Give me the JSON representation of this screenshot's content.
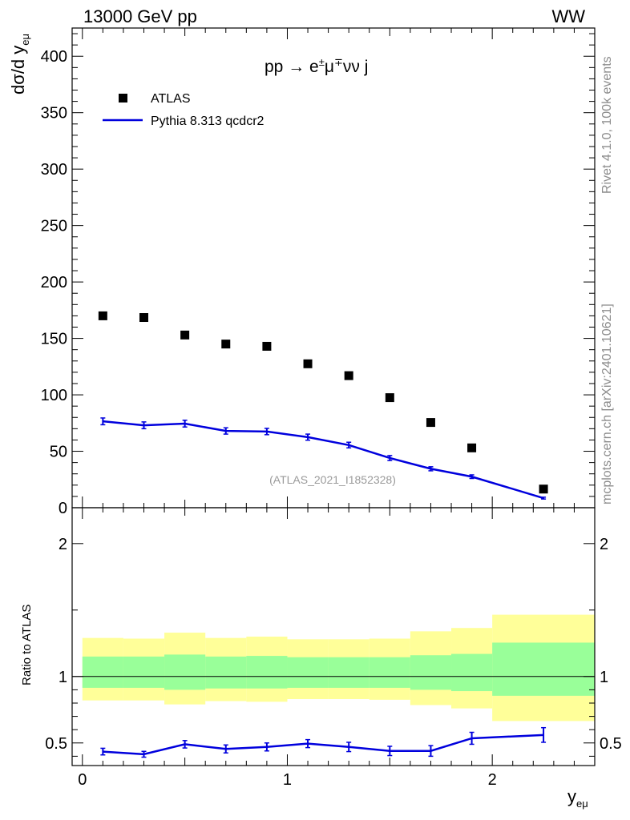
{
  "header": {
    "energy_label": "13000 GeV pp",
    "process_tag": "WW"
  },
  "side_labels": {
    "rivet": "Rivet 4.1.0,  100k events",
    "source": "mcplots.cern.ch [arXiv:2401.10621]"
  },
  "colors": {
    "data_marker": "#000000",
    "mc_line": "#0000dd",
    "band_inner": "#99ff99",
    "band_outer": "#ffff99"
  },
  "chart_data": [
    {
      "type": "scatter",
      "title": "pp → e±μ∓νν j",
      "process_parts": {
        "lhs": "pp",
        "arrow": "→",
        "e": "e",
        "e_sup": "±",
        "mu": "μ",
        "mu_sup": "∓",
        "rest": "νν j"
      },
      "ylabel": "dσ/d y",
      "ylabel_sub": "eμ",
      "xlabel": "y",
      "xlabel_sub": "eμ",
      "analysis_tag": "(ATLAS_2021_I1852328)",
      "xlim": [
        -0.05,
        2.5
      ],
      "ylim": [
        0,
        425
      ],
      "yticks": [
        0,
        50,
        100,
        150,
        200,
        250,
        300,
        350,
        400
      ],
      "ytick_labels": [
        "0",
        "50",
        "100",
        "150",
        "200",
        "250",
        "300",
        "350",
        "400"
      ],
      "legend": {
        "position": "top-left",
        "entries": [
          "ATLAS",
          "Pythia 8.313 qcdcr2"
        ]
      },
      "series": [
        {
          "name": "ATLAS",
          "style": "marker",
          "x": [
            0.1,
            0.3,
            0.5,
            0.7,
            0.9,
            1.1,
            1.3,
            1.5,
            1.7,
            1.9,
            2.25
          ],
          "y": [
            170,
            168.5,
            153,
            145,
            143,
            127.5,
            117,
            97.5,
            75.5,
            53,
            16.5
          ]
        },
        {
          "name": "Pythia 8.313 qcdcr2",
          "style": "line",
          "x": [
            0.1,
            0.3,
            0.5,
            0.7,
            0.9,
            1.1,
            1.3,
            1.5,
            1.7,
            1.9,
            2.25
          ],
          "y": [
            76.5,
            73,
            74.5,
            68,
            67.5,
            62.5,
            55.5,
            44,
            34.5,
            27.5,
            8.5
          ],
          "yerr": [
            3,
            3,
            3,
            2.8,
            2.8,
            2.7,
            2.5,
            2.2,
            1.8,
            1.6,
            0.8
          ],
          "bins": [
            [
              0,
              0.2
            ],
            [
              0.2,
              0.4
            ],
            [
              0.4,
              0.6
            ],
            [
              0.6,
              0.8
            ],
            [
              0.8,
              1.0
            ],
            [
              1.0,
              1.2
            ],
            [
              1.2,
              1.4
            ],
            [
              1.4,
              1.6
            ],
            [
              1.6,
              1.8
            ],
            [
              1.8,
              2.0
            ],
            [
              2.0,
              2.5
            ]
          ]
        }
      ]
    },
    {
      "type": "line",
      "title": "",
      "ylabel": "Ratio to ATLAS",
      "xlim": [
        -0.05,
        2.5
      ],
      "ylim": [
        0.33,
        2.27
      ],
      "yticks": [
        0.5,
        1,
        2
      ],
      "ytick_labels": [
        "0.5",
        "1",
        "2"
      ],
      "xticks": [
        0,
        1,
        2
      ],
      "xtick_labels": [
        "0",
        "1",
        "2"
      ],
      "reference_line": 1,
      "bins": [
        [
          0,
          0.2
        ],
        [
          0.2,
          0.4
        ],
        [
          0.4,
          0.6
        ],
        [
          0.6,
          0.8
        ],
        [
          0.8,
          1.0
        ],
        [
          1.0,
          1.2
        ],
        [
          1.2,
          1.4
        ],
        [
          1.4,
          1.6
        ],
        [
          1.6,
          1.8
        ],
        [
          1.8,
          2.0
        ],
        [
          2.0,
          2.5
        ]
      ],
      "band_inner": {
        "lo": [
          0.915,
          0.915,
          0.9,
          0.91,
          0.91,
          0.915,
          0.915,
          0.915,
          0.9,
          0.89,
          0.855
        ],
        "hi": [
          1.15,
          1.15,
          1.165,
          1.15,
          1.155,
          1.145,
          1.145,
          1.145,
          1.16,
          1.17,
          1.255
        ]
      },
      "band_outer": {
        "lo": [
          0.82,
          0.82,
          0.79,
          0.815,
          0.81,
          0.83,
          0.83,
          0.825,
          0.785,
          0.76,
          0.665
        ],
        "hi": [
          1.29,
          1.285,
          1.33,
          1.29,
          1.3,
          1.28,
          1.28,
          1.285,
          1.34,
          1.365,
          1.465
        ]
      },
      "series": [
        {
          "name": "Pythia 8.313 qcdcr2 / ATLAS",
          "x": [
            0.1,
            0.3,
            0.5,
            0.7,
            0.9,
            1.1,
            1.3,
            1.5,
            1.7,
            1.9,
            2.25
          ],
          "y": [
            0.435,
            0.415,
            0.49,
            0.455,
            0.47,
            0.495,
            0.47,
            0.44,
            0.44,
            0.535,
            0.56
          ],
          "yerr": [
            0.025,
            0.022,
            0.028,
            0.03,
            0.03,
            0.03,
            0.035,
            0.035,
            0.04,
            0.045,
            0.055
          ]
        }
      ]
    }
  ]
}
